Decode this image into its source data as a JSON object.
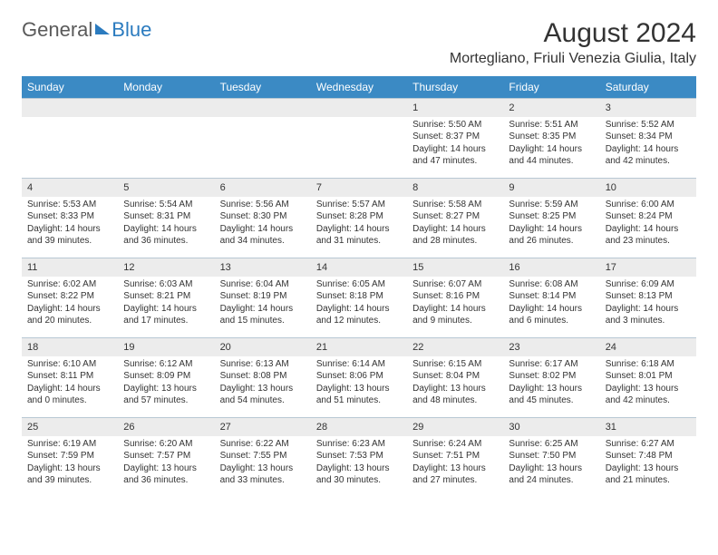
{
  "logo": {
    "general": "General",
    "blue": "Blue"
  },
  "title": "August 2024",
  "location": "Mortegliano, Friuli Venezia Giulia, Italy",
  "colors": {
    "header_bg": "#3b8ac4",
    "header_text": "#ffffff",
    "daynum_bg": "#ececec",
    "border": "#b8c8d4",
    "text": "#333333",
    "logo_gray": "#5a5a5a",
    "logo_blue": "#2b7bbf",
    "page_bg": "#ffffff"
  },
  "weekdays": [
    "Sunday",
    "Monday",
    "Tuesday",
    "Wednesday",
    "Thursday",
    "Friday",
    "Saturday"
  ],
  "weeks": [
    [
      null,
      null,
      null,
      null,
      {
        "n": "1",
        "sr": "5:50 AM",
        "ss": "8:37 PM",
        "dl": "14 hours and 47 minutes."
      },
      {
        "n": "2",
        "sr": "5:51 AM",
        "ss": "8:35 PM",
        "dl": "14 hours and 44 minutes."
      },
      {
        "n": "3",
        "sr": "5:52 AM",
        "ss": "8:34 PM",
        "dl": "14 hours and 42 minutes."
      }
    ],
    [
      {
        "n": "4",
        "sr": "5:53 AM",
        "ss": "8:33 PM",
        "dl": "14 hours and 39 minutes."
      },
      {
        "n": "5",
        "sr": "5:54 AM",
        "ss": "8:31 PM",
        "dl": "14 hours and 36 minutes."
      },
      {
        "n": "6",
        "sr": "5:56 AM",
        "ss": "8:30 PM",
        "dl": "14 hours and 34 minutes."
      },
      {
        "n": "7",
        "sr": "5:57 AM",
        "ss": "8:28 PM",
        "dl": "14 hours and 31 minutes."
      },
      {
        "n": "8",
        "sr": "5:58 AM",
        "ss": "8:27 PM",
        "dl": "14 hours and 28 minutes."
      },
      {
        "n": "9",
        "sr": "5:59 AM",
        "ss": "8:25 PM",
        "dl": "14 hours and 26 minutes."
      },
      {
        "n": "10",
        "sr": "6:00 AM",
        "ss": "8:24 PM",
        "dl": "14 hours and 23 minutes."
      }
    ],
    [
      {
        "n": "11",
        "sr": "6:02 AM",
        "ss": "8:22 PM",
        "dl": "14 hours and 20 minutes."
      },
      {
        "n": "12",
        "sr": "6:03 AM",
        "ss": "8:21 PM",
        "dl": "14 hours and 17 minutes."
      },
      {
        "n": "13",
        "sr": "6:04 AM",
        "ss": "8:19 PM",
        "dl": "14 hours and 15 minutes."
      },
      {
        "n": "14",
        "sr": "6:05 AM",
        "ss": "8:18 PM",
        "dl": "14 hours and 12 minutes."
      },
      {
        "n": "15",
        "sr": "6:07 AM",
        "ss": "8:16 PM",
        "dl": "14 hours and 9 minutes."
      },
      {
        "n": "16",
        "sr": "6:08 AM",
        "ss": "8:14 PM",
        "dl": "14 hours and 6 minutes."
      },
      {
        "n": "17",
        "sr": "6:09 AM",
        "ss": "8:13 PM",
        "dl": "14 hours and 3 minutes."
      }
    ],
    [
      {
        "n": "18",
        "sr": "6:10 AM",
        "ss": "8:11 PM",
        "dl": "14 hours and 0 minutes."
      },
      {
        "n": "19",
        "sr": "6:12 AM",
        "ss": "8:09 PM",
        "dl": "13 hours and 57 minutes."
      },
      {
        "n": "20",
        "sr": "6:13 AM",
        "ss": "8:08 PM",
        "dl": "13 hours and 54 minutes."
      },
      {
        "n": "21",
        "sr": "6:14 AM",
        "ss": "8:06 PM",
        "dl": "13 hours and 51 minutes."
      },
      {
        "n": "22",
        "sr": "6:15 AM",
        "ss": "8:04 PM",
        "dl": "13 hours and 48 minutes."
      },
      {
        "n": "23",
        "sr": "6:17 AM",
        "ss": "8:02 PM",
        "dl": "13 hours and 45 minutes."
      },
      {
        "n": "24",
        "sr": "6:18 AM",
        "ss": "8:01 PM",
        "dl": "13 hours and 42 minutes."
      }
    ],
    [
      {
        "n": "25",
        "sr": "6:19 AM",
        "ss": "7:59 PM",
        "dl": "13 hours and 39 minutes."
      },
      {
        "n": "26",
        "sr": "6:20 AM",
        "ss": "7:57 PM",
        "dl": "13 hours and 36 minutes."
      },
      {
        "n": "27",
        "sr": "6:22 AM",
        "ss": "7:55 PM",
        "dl": "13 hours and 33 minutes."
      },
      {
        "n": "28",
        "sr": "6:23 AM",
        "ss": "7:53 PM",
        "dl": "13 hours and 30 minutes."
      },
      {
        "n": "29",
        "sr": "6:24 AM",
        "ss": "7:51 PM",
        "dl": "13 hours and 27 minutes."
      },
      {
        "n": "30",
        "sr": "6:25 AM",
        "ss": "7:50 PM",
        "dl": "13 hours and 24 minutes."
      },
      {
        "n": "31",
        "sr": "6:27 AM",
        "ss": "7:48 PM",
        "dl": "13 hours and 21 minutes."
      }
    ]
  ],
  "labels": {
    "sunrise": "Sunrise:",
    "sunset": "Sunset:",
    "daylight": "Daylight:"
  }
}
